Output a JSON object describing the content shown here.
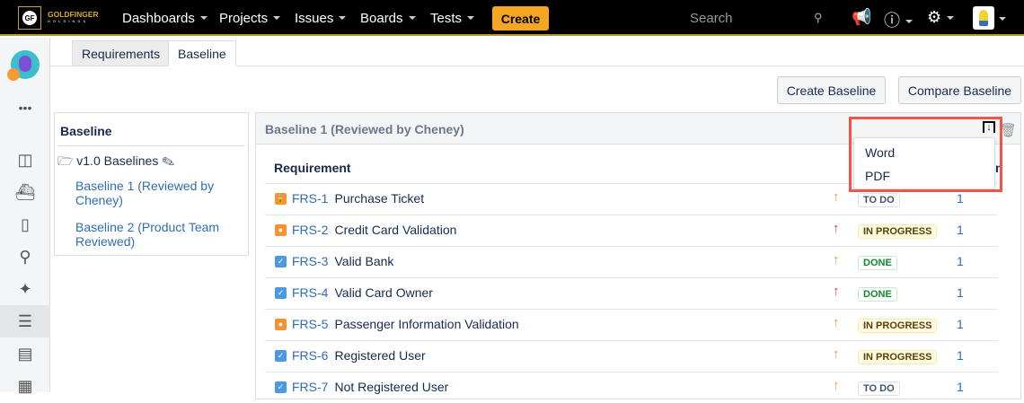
{
  "nav": {
    "brand": "GOLDFINGER",
    "brand_sub": "HOLDINGS",
    "items": [
      "Dashboards",
      "Projects",
      "Issues",
      "Boards",
      "Tests"
    ],
    "create": "Create",
    "search_placeholder": "Search"
  },
  "tabs": [
    "Requirements",
    "Baseline"
  ],
  "buttons": {
    "create_baseline": "Create Baseline",
    "compare_baseline": "Compare Baseline"
  },
  "left_panel": {
    "title": "Baseline",
    "folder": "v1.0 Baselines",
    "baselines": [
      "Baseline 1 (Reviewed by Cheney)",
      "Baseline 2 (Product Team Reviewed)"
    ]
  },
  "right_panel": {
    "title": "Baseline 1 (Reviewed by Cheney)",
    "col_requirement": "Requirement",
    "col_partial": "n",
    "rows": [
      {
        "key": "FRS-1",
        "summary": "Purchase Ticket",
        "type": "lock",
        "prio": "orange",
        "status": "TO DO",
        "count": "1"
      },
      {
        "key": "FRS-2",
        "summary": "Credit Card Validation",
        "type": "bulb",
        "prio": "red",
        "status": "IN PROGRESS",
        "count": "1"
      },
      {
        "key": "FRS-3",
        "summary": "Valid Bank",
        "type": "check",
        "prio": "orange",
        "status": "DONE",
        "count": "1"
      },
      {
        "key": "FRS-4",
        "summary": "Valid Card Owner",
        "type": "check",
        "prio": "red",
        "status": "DONE",
        "count": "1"
      },
      {
        "key": "FRS-5",
        "summary": "Passenger Information Validation",
        "type": "bulb",
        "prio": "orange",
        "status": "IN PROGRESS",
        "count": "1"
      },
      {
        "key": "FRS-6",
        "summary": "Registered User",
        "type": "check",
        "prio": "orange",
        "status": "IN PROGRESS",
        "count": "1"
      },
      {
        "key": "FRS-7",
        "summary": "Not Registered User",
        "type": "check",
        "prio": "orange",
        "status": "TO DO",
        "count": "1"
      }
    ]
  },
  "export_menu": [
    "Word",
    "PDF"
  ],
  "colors": {
    "accent": "#f5a623",
    "link": "#2f6db5",
    "highlight": "#f05548"
  }
}
